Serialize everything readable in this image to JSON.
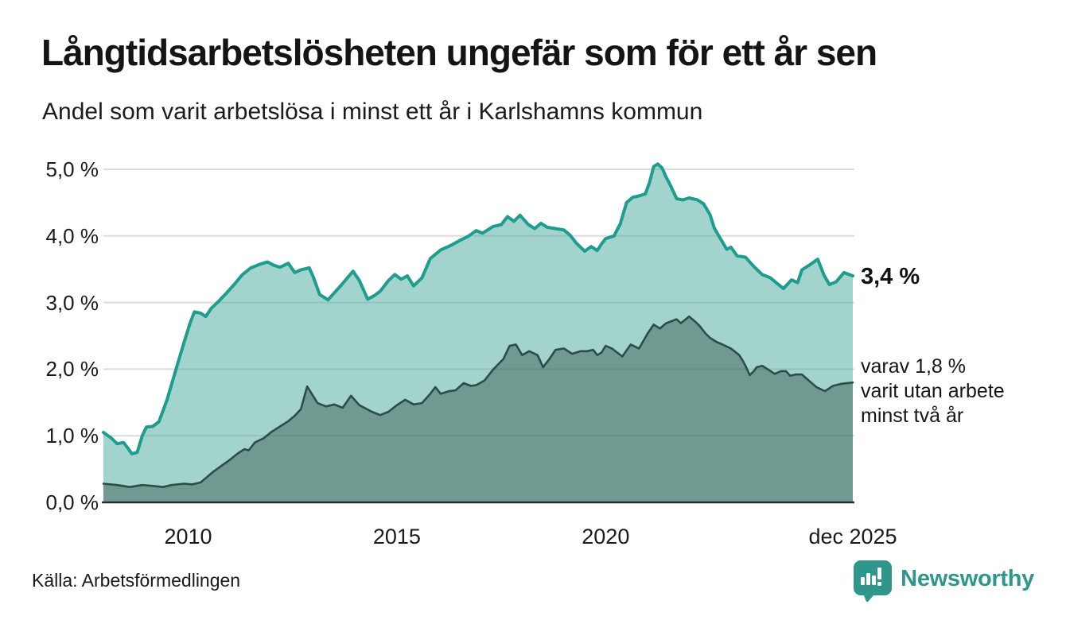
{
  "header": {
    "title": "Långtidsarbetslösheten ungefär som för ett år sen",
    "subtitle": "Andel som varit arbetslösa i minst ett år i Karlshamns kommun"
  },
  "annotations": {
    "current_value": "3,4 %",
    "secondary": [
      "varav 1,8 %",
      "varit utan arbete",
      "minst två år"
    ]
  },
  "footer": {
    "source": "Källa: Arbetsförmedlingen",
    "brand_name": "Newsworthy",
    "brand_icon": "bar-chart-speech-bubble"
  },
  "colors": {
    "line_1yr": "#1d9d8d",
    "fill_1yr": "rgba(69,169,155,0.5)",
    "line_2yr": "#2e4c47",
    "fill_2yr": "rgba(40,74,62,0.42)",
    "grid": "#dcdcdc",
    "baseline": "#2b2b2b",
    "brand_teal": "#2e968a"
  },
  "chart_data": {
    "type": "area",
    "unit": "%",
    "xlabel": "",
    "ylabel": "",
    "ylim": [
      0,
      5.35
    ],
    "xlim": [
      2007.97,
      2025.92
    ],
    "grid": true,
    "y_ticks": [
      {
        "value": 0,
        "label": "0,0 %"
      },
      {
        "value": 1,
        "label": "1,0 %"
      },
      {
        "value": 2,
        "label": "2,0 %"
      },
      {
        "value": 3,
        "label": "3,0 %"
      },
      {
        "value": 4,
        "label": "4,0 %"
      },
      {
        "value": 5,
        "label": "5,0 %"
      }
    ],
    "x_ticks": [
      {
        "x": 2010,
        "label": "2010"
      },
      {
        "x": 2015,
        "label": "2015"
      },
      {
        "x": 2020,
        "label": "2020"
      },
      {
        "x": 2025.92,
        "label": "dec 2025"
      }
    ],
    "series": [
      {
        "name": "Arbetslösa minst ett år",
        "end_label": "3,4 %",
        "points": [
          [
            2007.97,
            1.05
          ],
          [
            2008.15,
            0.97
          ],
          [
            2008.3,
            0.88
          ],
          [
            2008.45,
            0.9
          ],
          [
            2008.55,
            0.82
          ],
          [
            2008.65,
            0.73
          ],
          [
            2008.78,
            0.75
          ],
          [
            2008.9,
            1.0
          ],
          [
            2009.0,
            1.13
          ],
          [
            2009.15,
            1.14
          ],
          [
            2009.3,
            1.21
          ],
          [
            2009.5,
            1.55
          ],
          [
            2009.7,
            1.98
          ],
          [
            2009.9,
            2.4
          ],
          [
            2010.05,
            2.7
          ],
          [
            2010.15,
            2.86
          ],
          [
            2010.3,
            2.84
          ],
          [
            2010.42,
            2.79
          ],
          [
            2010.55,
            2.91
          ],
          [
            2010.7,
            3.0
          ],
          [
            2010.9,
            3.13
          ],
          [
            2011.1,
            3.27
          ],
          [
            2011.3,
            3.42
          ],
          [
            2011.5,
            3.52
          ],
          [
            2011.7,
            3.57
          ],
          [
            2011.9,
            3.61
          ],
          [
            2012.05,
            3.56
          ],
          [
            2012.2,
            3.53
          ],
          [
            2012.4,
            3.59
          ],
          [
            2012.55,
            3.45
          ],
          [
            2012.7,
            3.49
          ],
          [
            2012.9,
            3.52
          ],
          [
            2013.0,
            3.38
          ],
          [
            2013.15,
            3.12
          ],
          [
            2013.35,
            3.04
          ],
          [
            2013.65,
            3.25
          ],
          [
            2013.95,
            3.47
          ],
          [
            2014.1,
            3.33
          ],
          [
            2014.3,
            3.05
          ],
          [
            2014.45,
            3.1
          ],
          [
            2014.6,
            3.17
          ],
          [
            2014.8,
            3.33
          ],
          [
            2014.95,
            3.42
          ],
          [
            2015.1,
            3.35
          ],
          [
            2015.25,
            3.4
          ],
          [
            2015.4,
            3.25
          ],
          [
            2015.6,
            3.37
          ],
          [
            2015.8,
            3.66
          ],
          [
            2016.05,
            3.79
          ],
          [
            2016.3,
            3.86
          ],
          [
            2016.5,
            3.93
          ],
          [
            2016.7,
            3.99
          ],
          [
            2016.9,
            4.08
          ],
          [
            2017.05,
            4.04
          ],
          [
            2017.3,
            4.14
          ],
          [
            2017.5,
            4.17
          ],
          [
            2017.65,
            4.29
          ],
          [
            2017.8,
            4.22
          ],
          [
            2017.95,
            4.31
          ],
          [
            2018.15,
            4.17
          ],
          [
            2018.3,
            4.11
          ],
          [
            2018.45,
            4.19
          ],
          [
            2018.6,
            4.13
          ],
          [
            2018.8,
            4.11
          ],
          [
            2019.0,
            4.09
          ],
          [
            2019.15,
            4.01
          ],
          [
            2019.3,
            3.89
          ],
          [
            2019.5,
            3.77
          ],
          [
            2019.65,
            3.84
          ],
          [
            2019.8,
            3.78
          ],
          [
            2019.9,
            3.88
          ],
          [
            2020.0,
            3.96
          ],
          [
            2020.2,
            4.0
          ],
          [
            2020.35,
            4.18
          ],
          [
            2020.5,
            4.5
          ],
          [
            2020.65,
            4.58
          ],
          [
            2020.8,
            4.6
          ],
          [
            2020.95,
            4.63
          ],
          [
            2021.05,
            4.8
          ],
          [
            2021.15,
            5.04
          ],
          [
            2021.25,
            5.08
          ],
          [
            2021.35,
            5.02
          ],
          [
            2021.45,
            4.88
          ],
          [
            2021.55,
            4.76
          ],
          [
            2021.7,
            4.56
          ],
          [
            2021.85,
            4.54
          ],
          [
            2022.0,
            4.57
          ],
          [
            2022.2,
            4.54
          ],
          [
            2022.35,
            4.48
          ],
          [
            2022.5,
            4.32
          ],
          [
            2022.6,
            4.12
          ],
          [
            2022.75,
            3.96
          ],
          [
            2022.9,
            3.8
          ],
          [
            2023.0,
            3.83
          ],
          [
            2023.15,
            3.7
          ],
          [
            2023.35,
            3.68
          ],
          [
            2023.55,
            3.54
          ],
          [
            2023.75,
            3.42
          ],
          [
            2023.95,
            3.37
          ],
          [
            2024.1,
            3.29
          ],
          [
            2024.26,
            3.21
          ],
          [
            2024.45,
            3.34
          ],
          [
            2024.6,
            3.3
          ],
          [
            2024.7,
            3.49
          ],
          [
            2024.9,
            3.57
          ],
          [
            2025.08,
            3.65
          ],
          [
            2025.23,
            3.41
          ],
          [
            2025.36,
            3.27
          ],
          [
            2025.52,
            3.31
          ],
          [
            2025.71,
            3.45
          ],
          [
            2025.92,
            3.4
          ]
        ]
      },
      {
        "name": "varav utan arbete minst två år",
        "end_label": "1,8 %",
        "points": [
          [
            2007.97,
            0.28
          ],
          [
            2008.3,
            0.26
          ],
          [
            2008.6,
            0.23
          ],
          [
            2008.9,
            0.26
          ],
          [
            2009.1,
            0.25
          ],
          [
            2009.4,
            0.23
          ],
          [
            2009.6,
            0.26
          ],
          [
            2009.9,
            0.28
          ],
          [
            2010.1,
            0.27
          ],
          [
            2010.3,
            0.3
          ],
          [
            2010.45,
            0.38
          ],
          [
            2010.6,
            0.46
          ],
          [
            2010.8,
            0.55
          ],
          [
            2011.0,
            0.64
          ],
          [
            2011.2,
            0.74
          ],
          [
            2011.35,
            0.8
          ],
          [
            2011.45,
            0.78
          ],
          [
            2011.6,
            0.9
          ],
          [
            2011.8,
            0.96
          ],
          [
            2012.0,
            1.06
          ],
          [
            2012.2,
            1.14
          ],
          [
            2012.4,
            1.22
          ],
          [
            2012.55,
            1.3
          ],
          [
            2012.7,
            1.4
          ],
          [
            2012.85,
            1.74
          ],
          [
            2013.1,
            1.49
          ],
          [
            2013.3,
            1.44
          ],
          [
            2013.5,
            1.47
          ],
          [
            2013.7,
            1.42
          ],
          [
            2013.9,
            1.6
          ],
          [
            2014.1,
            1.46
          ],
          [
            2014.4,
            1.36
          ],
          [
            2014.6,
            1.31
          ],
          [
            2014.8,
            1.36
          ],
          [
            2015.0,
            1.46
          ],
          [
            2015.2,
            1.54
          ],
          [
            2015.4,
            1.47
          ],
          [
            2015.6,
            1.49
          ],
          [
            2015.8,
            1.63
          ],
          [
            2015.92,
            1.73
          ],
          [
            2016.05,
            1.63
          ],
          [
            2016.25,
            1.67
          ],
          [
            2016.4,
            1.68
          ],
          [
            2016.6,
            1.79
          ],
          [
            2016.77,
            1.75
          ],
          [
            2016.9,
            1.76
          ],
          [
            2017.1,
            1.83
          ],
          [
            2017.3,
            1.99
          ],
          [
            2017.55,
            2.15
          ],
          [
            2017.7,
            2.35
          ],
          [
            2017.85,
            2.37
          ],
          [
            2018.0,
            2.21
          ],
          [
            2018.17,
            2.27
          ],
          [
            2018.37,
            2.21
          ],
          [
            2018.5,
            2.03
          ],
          [
            2018.65,
            2.15
          ],
          [
            2018.8,
            2.29
          ],
          [
            2019.0,
            2.31
          ],
          [
            2019.2,
            2.23
          ],
          [
            2019.4,
            2.27
          ],
          [
            2019.55,
            2.27
          ],
          [
            2019.7,
            2.29
          ],
          [
            2019.8,
            2.21
          ],
          [
            2019.9,
            2.25
          ],
          [
            2020.0,
            2.35
          ],
          [
            2020.15,
            2.31
          ],
          [
            2020.4,
            2.19
          ],
          [
            2020.6,
            2.37
          ],
          [
            2020.8,
            2.31
          ],
          [
            2021.0,
            2.53
          ],
          [
            2021.15,
            2.67
          ],
          [
            2021.3,
            2.61
          ],
          [
            2021.45,
            2.69
          ],
          [
            2021.7,
            2.75
          ],
          [
            2021.8,
            2.69
          ],
          [
            2022.0,
            2.79
          ],
          [
            2022.15,
            2.71
          ],
          [
            2022.25,
            2.65
          ],
          [
            2022.4,
            2.53
          ],
          [
            2022.5,
            2.47
          ],
          [
            2022.65,
            2.41
          ],
          [
            2022.8,
            2.37
          ],
          [
            2023.0,
            2.31
          ],
          [
            2023.2,
            2.21
          ],
          [
            2023.28,
            2.13
          ],
          [
            2023.35,
            2.05
          ],
          [
            2023.45,
            1.91
          ],
          [
            2023.55,
            1.97
          ],
          [
            2023.62,
            2.03
          ],
          [
            2023.75,
            2.05
          ],
          [
            2023.9,
            1.99
          ],
          [
            2024.05,
            1.93
          ],
          [
            2024.2,
            1.97
          ],
          [
            2024.32,
            1.97
          ],
          [
            2024.42,
            1.9
          ],
          [
            2024.55,
            1.92
          ],
          [
            2024.7,
            1.92
          ],
          [
            2024.9,
            1.81
          ],
          [
            2025.05,
            1.73
          ],
          [
            2025.25,
            1.67
          ],
          [
            2025.45,
            1.75
          ],
          [
            2025.65,
            1.78
          ],
          [
            2025.92,
            1.8
          ]
        ]
      }
    ]
  }
}
